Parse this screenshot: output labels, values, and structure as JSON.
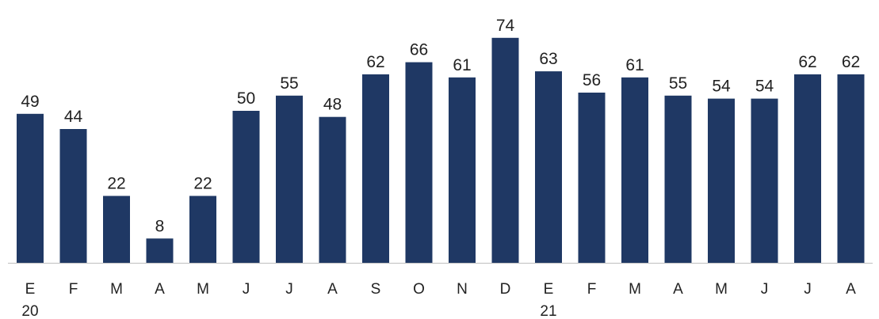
{
  "chart_data": {
    "type": "bar",
    "categories": [
      "E",
      "F",
      "M",
      "A",
      "M",
      "J",
      "J",
      "A",
      "S",
      "O",
      "N",
      "D",
      "E",
      "F",
      "M",
      "A",
      "M",
      "J",
      "J",
      "A"
    ],
    "year_labels": [
      "20",
      "",
      "",
      "",
      "",
      "",
      "",
      "",
      "",
      "",
      "",
      "",
      "21",
      "",
      "",
      "",
      "",
      "",
      "",
      ""
    ],
    "values": [
      49,
      44,
      22,
      8,
      22,
      50,
      55,
      48,
      62,
      66,
      61,
      74,
      63,
      56,
      61,
      55,
      54,
      54,
      62,
      62
    ],
    "data_labels": [
      "49",
      "44",
      "22",
      "8",
      "22",
      "50",
      "55",
      "48",
      "62",
      "66",
      "61",
      "74",
      "63",
      "56",
      "61",
      "55",
      "54",
      "54",
      "62",
      "62"
    ],
    "title": "",
    "xlabel": "",
    "ylabel": "",
    "ylim": [
      0,
      74
    ],
    "grid": false,
    "legend": "none",
    "bar_color": "#1f3864",
    "axis_color": "#bfbfbf"
  }
}
